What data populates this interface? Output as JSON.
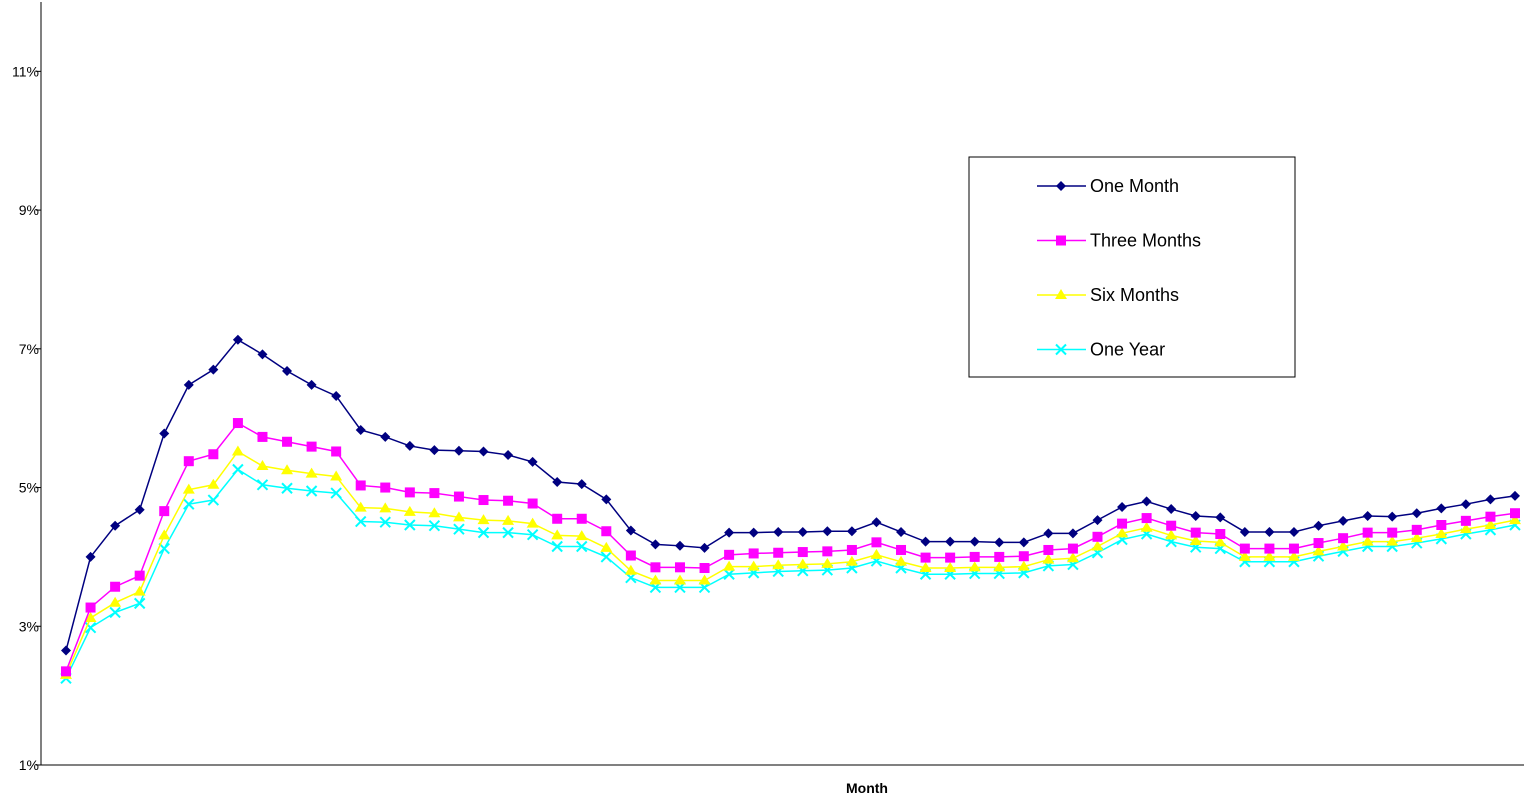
{
  "chart_data": {
    "type": "line",
    "title": "",
    "xlabel": "Month",
    "ylabel": "",
    "ylim": [
      1,
      12
    ],
    "yticks": [
      1,
      3,
      5,
      7,
      9,
      11
    ],
    "ytick_labels": [
      "1%",
      "3%",
      "5%",
      "7%",
      "9%",
      "11%"
    ],
    "grid": false,
    "legend_position": "right",
    "series": [
      {
        "name": "One Month",
        "color": "#000080",
        "marker": "diamond",
        "values": [
          2.65,
          4.0,
          4.45,
          4.68,
          5.78,
          6.48,
          6.7,
          7.13,
          6.92,
          6.68,
          6.48,
          6.32,
          5.83,
          5.73,
          5.6,
          5.54,
          5.53,
          5.52,
          5.47,
          5.37,
          5.08,
          5.05,
          4.83,
          4.38,
          4.18,
          4.16,
          4.13,
          4.35,
          4.35,
          4.36,
          4.36,
          4.37,
          4.37,
          4.5,
          4.36,
          4.22,
          4.22,
          4.22,
          4.21,
          4.21,
          4.34,
          4.34,
          4.53,
          4.72,
          4.8,
          4.69,
          4.59,
          4.57,
          4.36,
          4.36,
          4.36,
          4.45,
          4.52,
          4.59,
          4.58,
          4.63,
          4.7,
          4.76,
          4.83,
          4.88
        ]
      },
      {
        "name": "Three Months",
        "color": "#FF00FF",
        "marker": "square",
        "values": [
          2.35,
          3.27,
          3.57,
          3.73,
          4.66,
          5.38,
          5.48,
          5.93,
          5.73,
          5.66,
          5.59,
          5.52,
          5.03,
          5.0,
          4.93,
          4.92,
          4.87,
          4.82,
          4.81,
          4.77,
          4.55,
          4.55,
          4.37,
          4.02,
          3.85,
          3.85,
          3.84,
          4.03,
          4.05,
          4.06,
          4.07,
          4.08,
          4.1,
          4.21,
          4.1,
          3.99,
          3.99,
          4.0,
          4.0,
          4.01,
          4.1,
          4.12,
          4.29,
          4.48,
          4.56,
          4.45,
          4.35,
          4.33,
          4.12,
          4.12,
          4.12,
          4.2,
          4.27,
          4.35,
          4.35,
          4.39,
          4.46,
          4.52,
          4.58,
          4.63
        ]
      },
      {
        "name": "Six Months",
        "color": "#FFFF00",
        "marker": "triangle",
        "values": [
          2.3,
          3.12,
          3.34,
          3.5,
          4.31,
          4.97,
          5.04,
          5.52,
          5.31,
          5.25,
          5.2,
          5.16,
          4.71,
          4.7,
          4.65,
          4.63,
          4.57,
          4.53,
          4.52,
          4.48,
          4.31,
          4.3,
          4.13,
          3.8,
          3.66,
          3.66,
          3.66,
          3.86,
          3.86,
          3.88,
          3.89,
          3.9,
          3.93,
          4.03,
          3.93,
          3.84,
          3.84,
          3.85,
          3.85,
          3.86,
          3.96,
          3.98,
          4.15,
          4.34,
          4.42,
          4.31,
          4.23,
          4.21,
          4.0,
          4.0,
          4.0,
          4.08,
          4.15,
          4.22,
          4.22,
          4.27,
          4.33,
          4.4,
          4.46,
          4.53
        ]
      },
      {
        "name": "One Year",
        "color": "#00FFFF",
        "marker": "x",
        "values": [
          2.25,
          2.98,
          3.2,
          3.33,
          4.12,
          4.76,
          4.82,
          5.26,
          5.04,
          4.99,
          4.95,
          4.92,
          4.51,
          4.5,
          4.46,
          4.45,
          4.4,
          4.35,
          4.35,
          4.32,
          4.15,
          4.15,
          4.0,
          3.7,
          3.56,
          3.56,
          3.56,
          3.75,
          3.77,
          3.79,
          3.8,
          3.81,
          3.84,
          3.94,
          3.84,
          3.75,
          3.75,
          3.76,
          3.76,
          3.77,
          3.87,
          3.89,
          4.06,
          4.25,
          4.33,
          4.22,
          4.14,
          4.12,
          3.93,
          3.93,
          3.93,
          4.01,
          4.08,
          4.15,
          4.15,
          4.2,
          4.26,
          4.33,
          4.39,
          4.46
        ]
      }
    ]
  }
}
